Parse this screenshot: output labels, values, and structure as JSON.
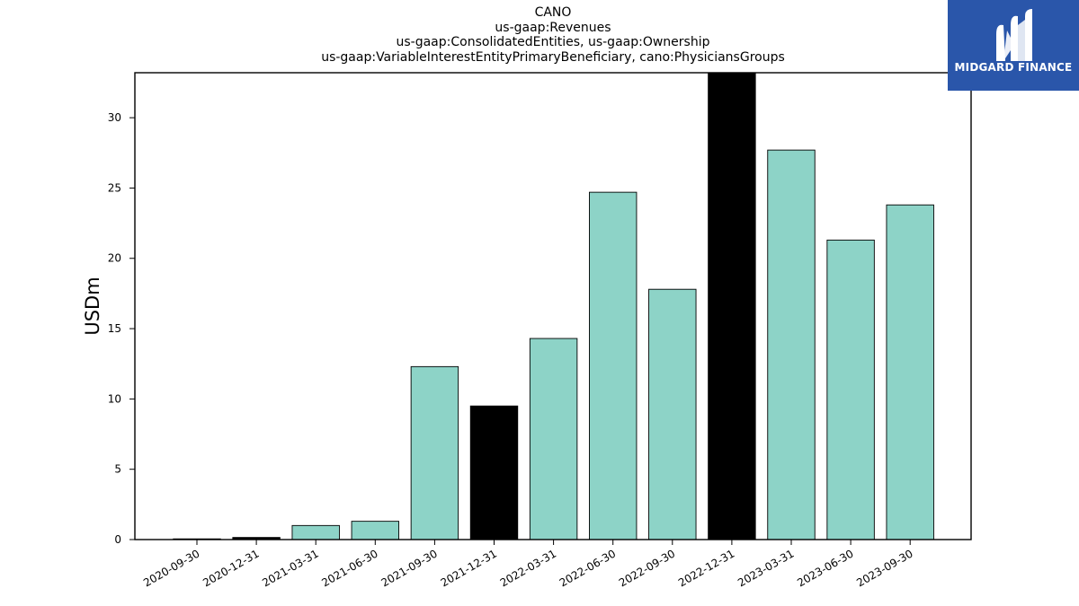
{
  "chart_data": {
    "type": "bar",
    "title_lines": [
      "CANO",
      "us-gaap:Revenues",
      "us-gaap:ConsolidatedEntities, us-gaap:Ownership",
      "us-gaap:VariableInterestEntityPrimaryBeneficiary, cano:PhysiciansGroups"
    ],
    "ylabel": "USDm",
    "xlabel": "",
    "ylim": [
      0,
      33.2
    ],
    "yticks": [
      0,
      5,
      10,
      15,
      20,
      25,
      30
    ],
    "categories": [
      "2020-09-30",
      "2020-12-31",
      "2021-03-31",
      "2021-06-30",
      "2021-09-30",
      "2021-12-31",
      "2022-03-31",
      "2022-06-30",
      "2022-09-30",
      "2022-12-31",
      "2023-03-31",
      "2023-06-30",
      "2023-09-30"
    ],
    "values": [
      0.05,
      0.15,
      1.0,
      1.3,
      12.3,
      9.5,
      14.3,
      24.7,
      17.8,
      33.2,
      27.7,
      21.3,
      23.8
    ],
    "bar_colors": [
      "#8dd3c7",
      "#000000",
      "#8dd3c7",
      "#8dd3c7",
      "#8dd3c7",
      "#000000",
      "#8dd3c7",
      "#8dd3c7",
      "#8dd3c7",
      "#000000",
      "#8dd3c7",
      "#8dd3c7",
      "#8dd3c7"
    ],
    "grid": false,
    "legend": "none"
  },
  "logo": {
    "text": "MIDGARD FINANCE",
    "background": "#2a56aa"
  }
}
